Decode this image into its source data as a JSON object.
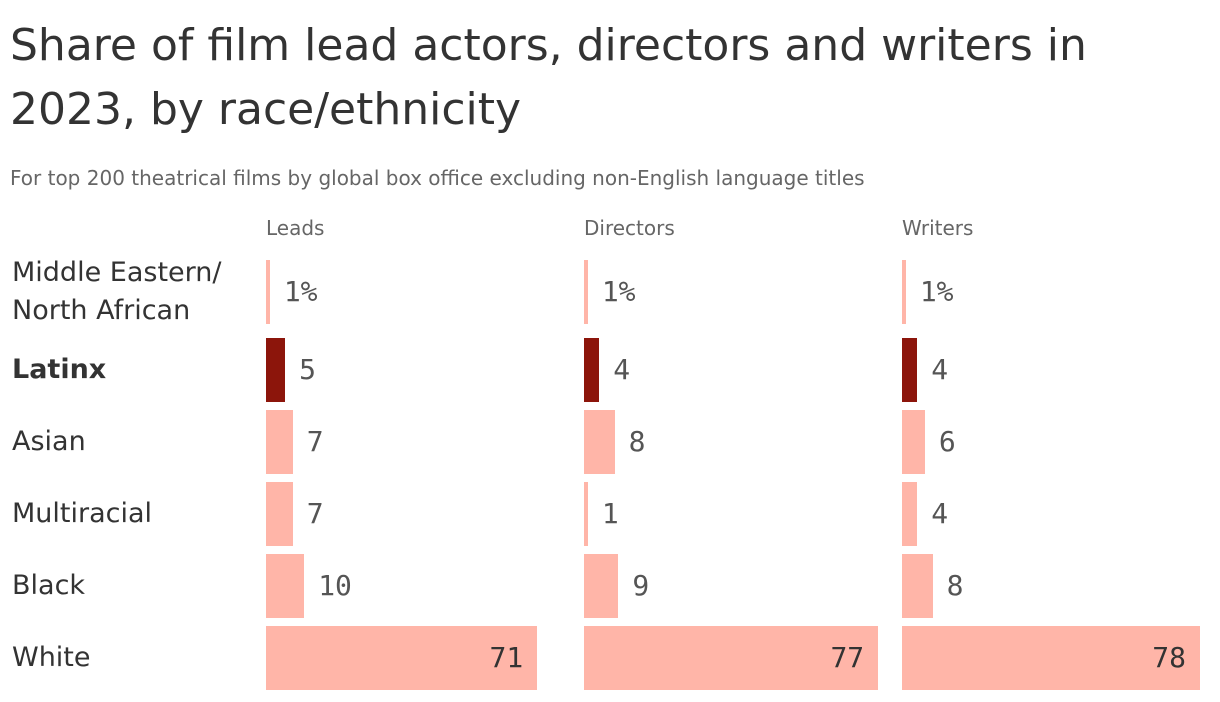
{
  "chart_data": {
    "type": "bar",
    "orientation": "horizontal",
    "title": "Share of film lead actors, directors and writers in 2023, by race/ethnicity",
    "subtitle": "For top 200 theatrical films by global box office excluding non-English language titles",
    "categories": [
      "Middle Eastern/ North African",
      "Latinx",
      "Asian",
      "Multiracial",
      "Black",
      "White"
    ],
    "color": "#ffb5a8",
    "highlight_color": "#8c150b",
    "highlight_index": 1,
    "xlim": [
      0,
      78
    ],
    "series": [
      {
        "name": "Leads",
        "values": [
          1,
          5,
          7,
          7,
          10,
          71
        ],
        "value_labels": [
          "1%",
          "5",
          "7",
          "7",
          "10",
          "71"
        ]
      },
      {
        "name": "Directors",
        "values": [
          1,
          4,
          8,
          1,
          9,
          77
        ],
        "value_labels": [
          "1%",
          "4",
          "8",
          "1",
          "9",
          "77"
        ]
      },
      {
        "name": "Writers",
        "values": [
          1,
          4,
          6,
          4,
          8,
          78
        ],
        "value_labels": [
          "1%",
          "4",
          "6",
          "4",
          "8",
          "78"
        ]
      }
    ]
  }
}
